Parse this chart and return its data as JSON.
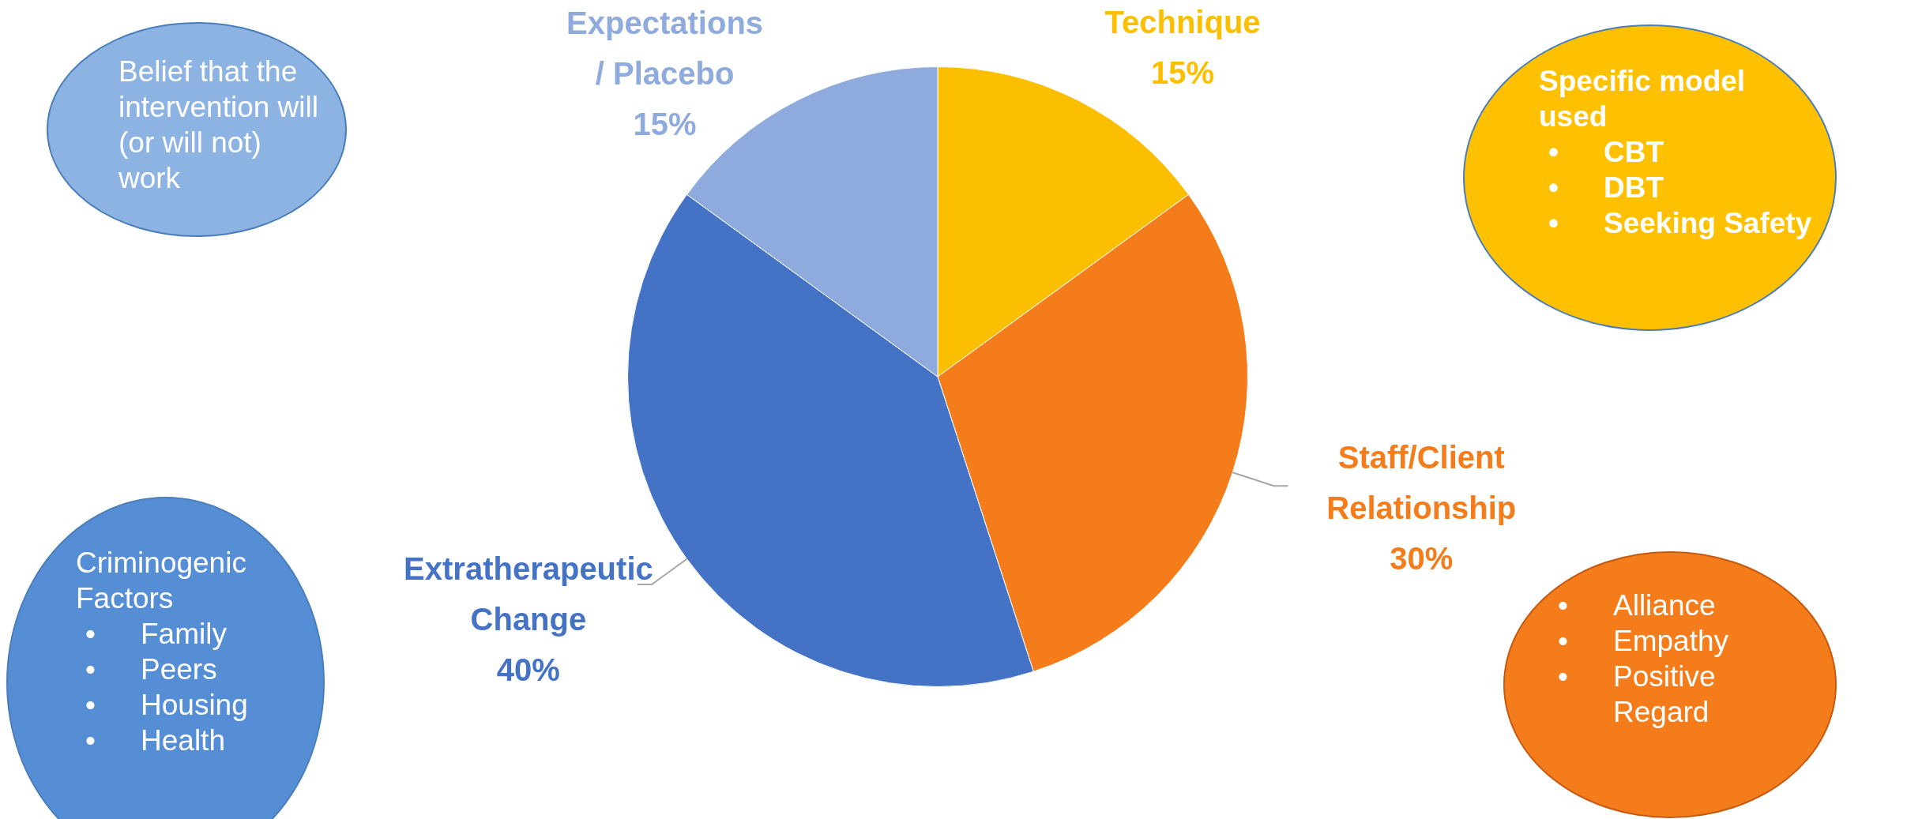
{
  "chart_data": {
    "type": "pie",
    "categories": [
      "Technique",
      "Staff/Client Relationship",
      "Extratherapeutic Change",
      "Expectations / Placebo"
    ],
    "values": [
      15,
      30,
      40,
      15
    ],
    "value_labels": [
      "15%",
      "30%",
      "40%",
      "15%"
    ],
    "colors": [
      "#fcbf00",
      "#f47c1b",
      "#4472c4",
      "#8faadc"
    ],
    "legend": false,
    "annotations": [
      "Belief that the intervention will (or will not) work",
      "Specific model used\n• CBT\n• DBT\n• Seeking Safety",
      "Criminogenic Factors\n• Family\n• Peers\n• Housing\n• Health",
      "• Alliance\n• Empathy\n• Positive Regard"
    ]
  }
}
